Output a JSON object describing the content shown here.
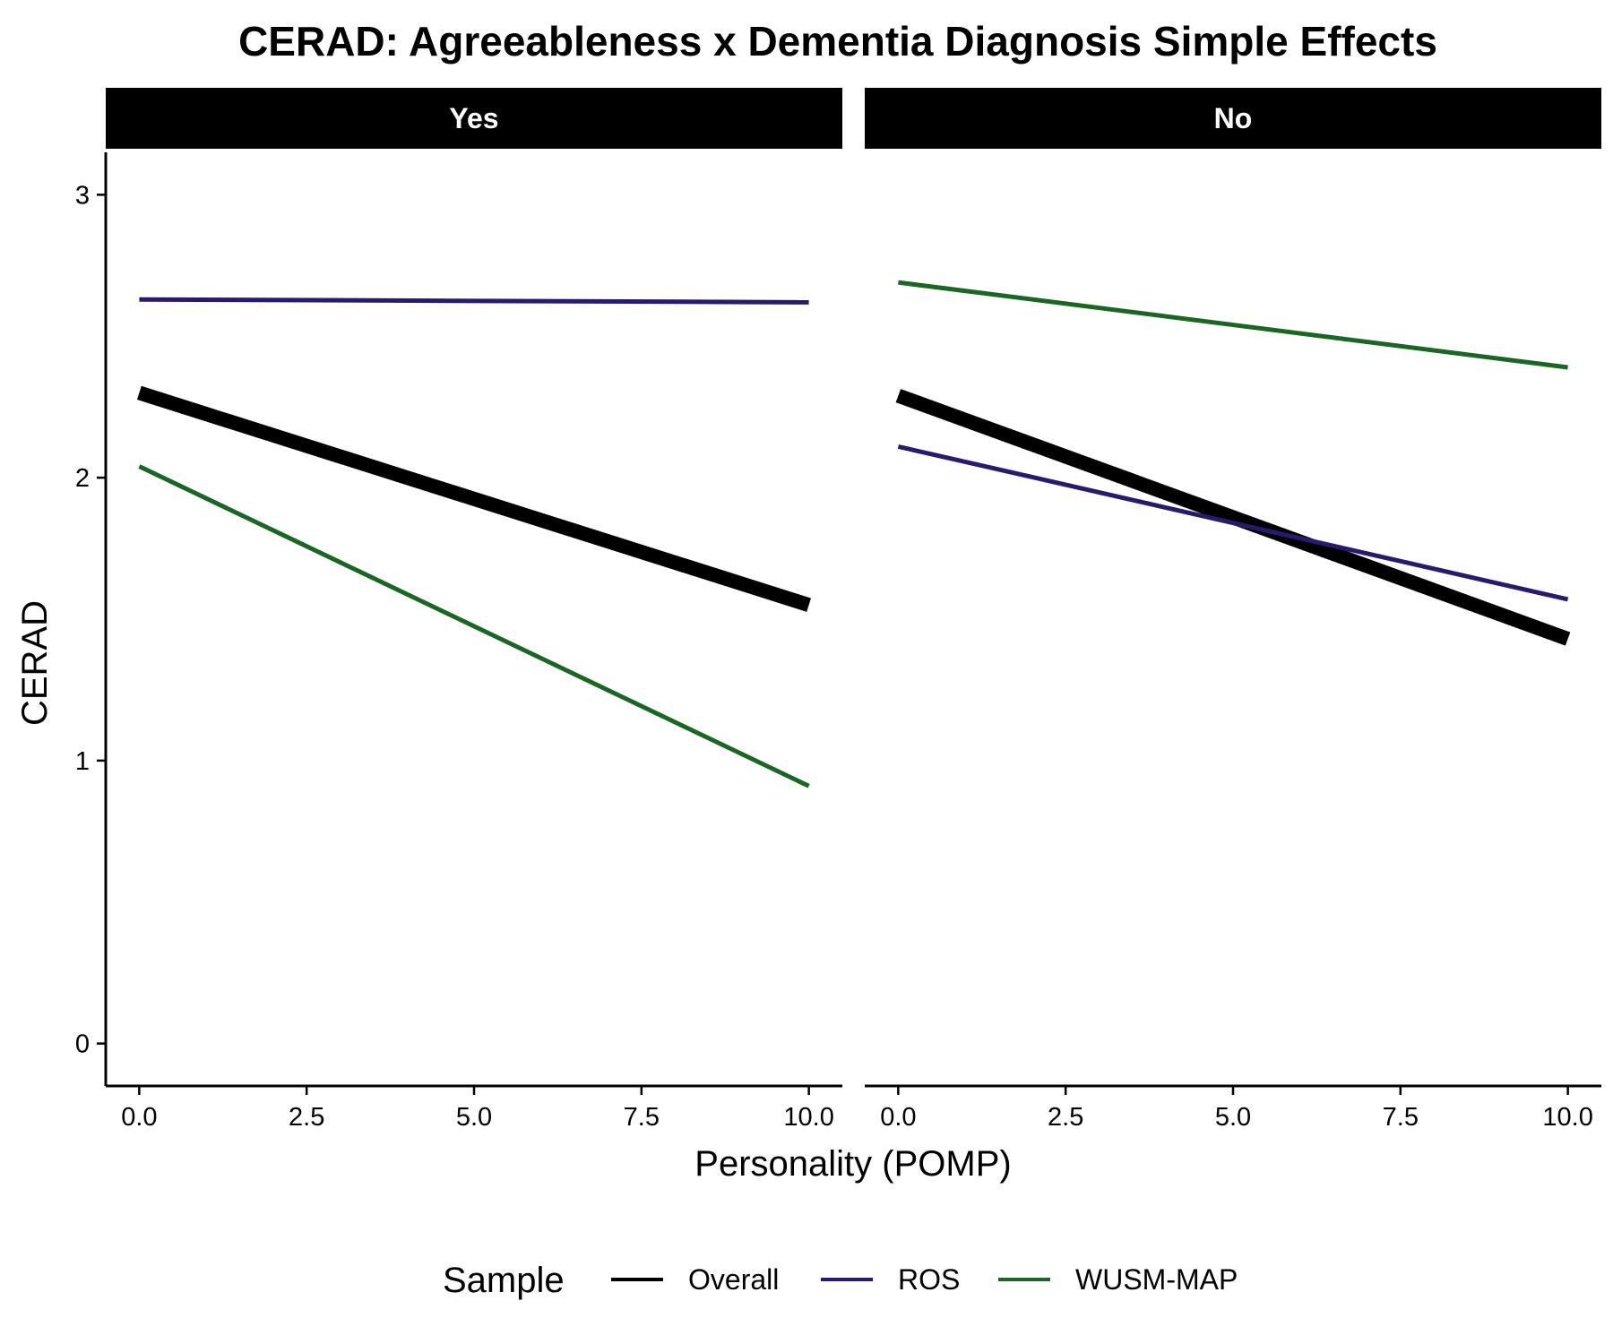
{
  "chart_data": {
    "type": "line",
    "title": "CERAD: Agreeableness x Dementia Diagnosis Simple Effects",
    "xlabel": "Personality (POMP)",
    "ylabel": "CERAD",
    "xlim": [
      -0.5,
      10.5
    ],
    "ylim": [
      -0.15,
      3.15
    ],
    "x_ticks": [
      0,
      2.5,
      5,
      7.5,
      10
    ],
    "x_tick_labels": [
      "0.0",
      "2.5",
      "5.0",
      "7.5",
      "10.0"
    ],
    "y_ticks": [
      0,
      1,
      2,
      3
    ],
    "y_tick_labels": [
      "0",
      "1",
      "2",
      "3"
    ],
    "grid": false,
    "legend_title": "Sample",
    "legend_position": "bottom",
    "series_styles": [
      {
        "name": "Overall",
        "color": "#000000",
        "width": "thick"
      },
      {
        "name": "ROS",
        "color": "#2a1a6e",
        "width": "thin"
      },
      {
        "name": "WUSM-MAP",
        "color": "#1a6625",
        "width": "thin"
      }
    ],
    "panels": [
      {
        "label": "Yes",
        "series": [
          {
            "name": "Overall",
            "x": [
              0,
              10
            ],
            "y": [
              2.3,
              1.55
            ]
          },
          {
            "name": "ROS",
            "x": [
              0,
              10
            ],
            "y": [
              2.63,
              2.62
            ]
          },
          {
            "name": "WUSM-MAP",
            "x": [
              0,
              10
            ],
            "y": [
              2.04,
              0.91
            ]
          }
        ]
      },
      {
        "label": "No",
        "series": [
          {
            "name": "Overall",
            "x": [
              0,
              10
            ],
            "y": [
              2.29,
              1.43
            ]
          },
          {
            "name": "ROS",
            "x": [
              0,
              10
            ],
            "y": [
              2.11,
              1.57
            ]
          },
          {
            "name": "WUSM-MAP",
            "x": [
              0,
              10
            ],
            "y": [
              2.69,
              2.39
            ]
          }
        ]
      }
    ]
  }
}
